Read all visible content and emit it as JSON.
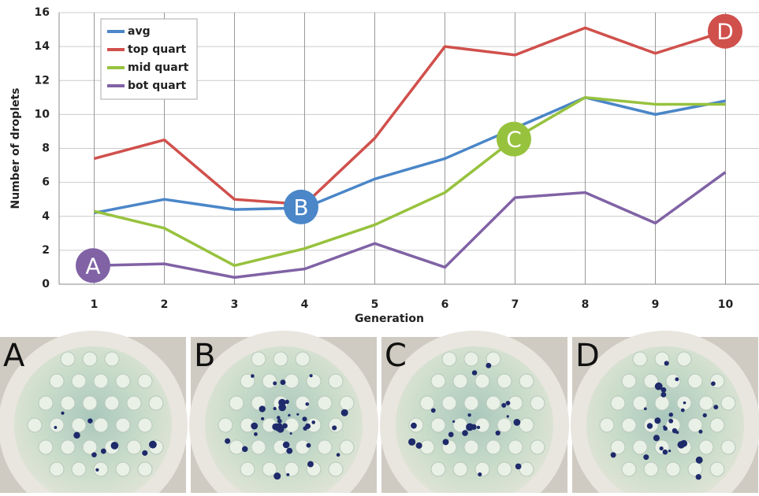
{
  "chart_data": {
    "type": "line",
    "x": [
      1,
      2,
      3,
      4,
      5,
      6,
      7,
      8,
      9,
      10
    ],
    "xlim": [
      0.5,
      10.5
    ],
    "xticks": [
      1,
      2,
      3,
      4,
      5,
      6,
      7,
      8,
      9,
      10
    ],
    "ylim": [
      0,
      16
    ],
    "yticks": [
      0,
      2,
      4,
      6,
      8,
      10,
      12,
      14,
      16
    ],
    "xlabel": "Generation",
    "ylabel": "Number of droplets",
    "grid": true,
    "legend": "upper-left",
    "series": [
      {
        "name": "avg",
        "color": "#4a86c8",
        "values": [
          4.2,
          5.0,
          4.4,
          4.5,
          6.2,
          7.4,
          9.2,
          11.0,
          10.0,
          10.8
        ]
      },
      {
        "name": "top quart",
        "color": "#d0504c",
        "values": [
          7.4,
          8.5,
          5.0,
          4.7,
          8.6,
          14.0,
          13.5,
          15.1,
          13.6,
          14.9
        ]
      },
      {
        "name": "mid quart",
        "color": "#97c23e",
        "values": [
          4.3,
          3.3,
          1.1,
          2.1,
          3.5,
          5.4,
          8.6,
          11.0,
          10.6,
          10.6
        ]
      },
      {
        "name": "bot quart",
        "color": "#8062a5",
        "values": [
          1.1,
          1.2,
          0.4,
          0.9,
          2.4,
          1.0,
          5.1,
          5.4,
          3.6,
          6.6
        ]
      }
    ],
    "annotations": [
      "A",
      "B",
      "C",
      "D"
    ]
  },
  "panels": [
    "A",
    "B",
    "C",
    "D"
  ]
}
